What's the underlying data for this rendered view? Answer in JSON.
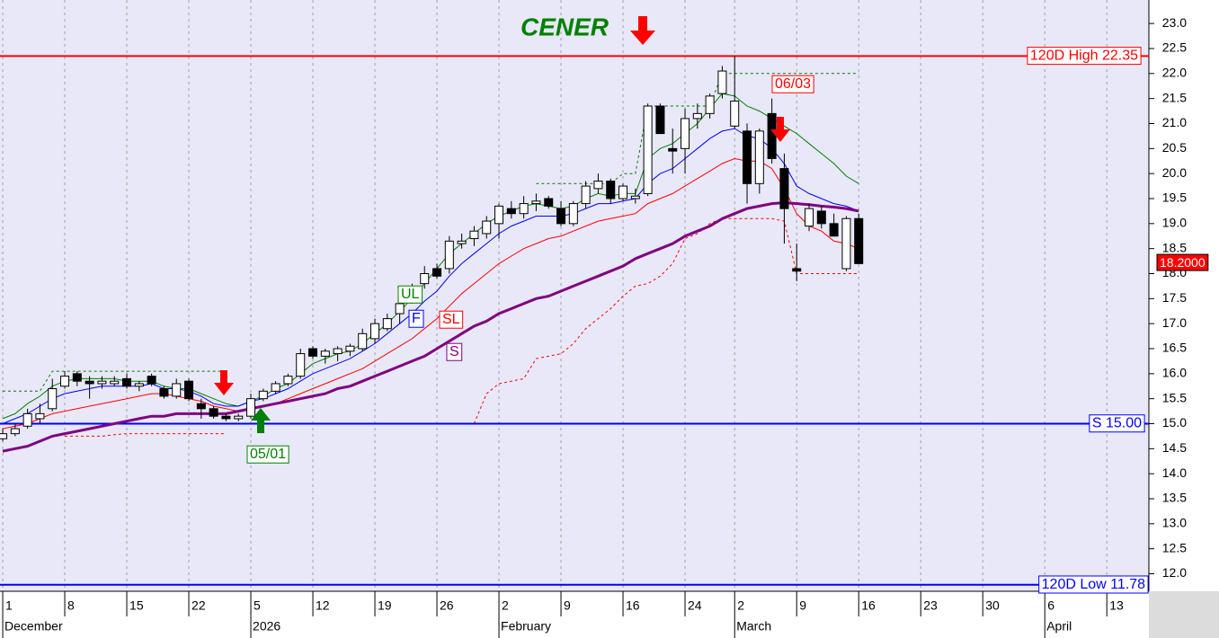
{
  "chart_data": {
    "type": "candlestick",
    "title": "CENER",
    "xlim": [
      -0.22,
      92.39
    ],
    "ylim": [
      11.65,
      23.47
    ],
    "yticks": [
      {
        "value": 12,
        "label": "12.0"
      },
      {
        "value": 12.5,
        "label": "12.5"
      },
      {
        "value": 13,
        "label": "13.0"
      },
      {
        "value": 13.5,
        "label": "13.5"
      },
      {
        "value": 14,
        "label": "14.0"
      },
      {
        "value": 14.5,
        "label": "14.5"
      },
      {
        "value": 15,
        "label": "15.0"
      },
      {
        "value": 15.5,
        "label": "15.5"
      },
      {
        "value": 16,
        "label": "16.0"
      },
      {
        "value": 16.5,
        "label": "16.5"
      },
      {
        "value": 17,
        "label": "17.0"
      },
      {
        "value": 17.5,
        "label": "17.5"
      },
      {
        "value": 18,
        "label": "18.0"
      },
      {
        "value": 18.5,
        "label": "18.5"
      },
      {
        "value": 19,
        "label": "19.0"
      },
      {
        "value": 19.5,
        "label": "19.5"
      },
      {
        "value": 20,
        "label": "20.0"
      },
      {
        "value": 20.5,
        "label": "20.5"
      },
      {
        "value": 21,
        "label": "21.0"
      },
      {
        "value": 21.5,
        "label": "21.5"
      },
      {
        "value": 22,
        "label": "22.0"
      },
      {
        "value": 22.5,
        "label": "22.5"
      },
      {
        "value": 23,
        "label": "23.0"
      }
    ],
    "xticks": [
      {
        "value": 0,
        "label": "1"
      },
      {
        "value": 5,
        "label": "8"
      },
      {
        "value": 10,
        "label": "15"
      },
      {
        "value": 15,
        "label": "22"
      },
      {
        "value": 20,
        "label": "5"
      },
      {
        "value": 25,
        "label": "12"
      },
      {
        "value": 30,
        "label": "19"
      },
      {
        "value": 35,
        "label": "26"
      },
      {
        "value": 40,
        "label": "2"
      },
      {
        "value": 45,
        "label": "9"
      },
      {
        "value": 50,
        "label": "16"
      },
      {
        "value": 55,
        "label": "24"
      },
      {
        "value": 59,
        "label": "2"
      },
      {
        "value": 64,
        "label": "9"
      },
      {
        "value": 69,
        "label": "16"
      },
      {
        "value": 74,
        "label": "23"
      },
      {
        "value": 79,
        "label": "30"
      },
      {
        "value": 84,
        "label": "6"
      },
      {
        "value": 89,
        "label": "13"
      }
    ],
    "months": [
      {
        "value": 0,
        "label": "December"
      },
      {
        "value": 20,
        "label": "2026"
      },
      {
        "value": 40,
        "label": "February"
      },
      {
        "value": 59,
        "label": "March"
      },
      {
        "value": 84,
        "label": "April"
      }
    ],
    "candles": {
      "open": [
        14.7,
        14.8,
        14.95,
        15.1,
        15.3,
        15.75,
        16.0,
        15.85,
        15.8,
        15.8,
        15.9,
        15.75,
        15.95,
        15.7,
        15.55,
        15.85,
        15.4,
        15.3,
        15.15,
        15.1,
        15.15,
        15.5,
        15.65,
        15.8,
        15.95,
        16.5,
        16.35,
        16.4,
        16.45,
        16.5,
        16.7,
        16.9,
        17.2,
        17.5,
        17.8,
        18.1,
        18.1,
        18.6,
        18.7,
        18.8,
        19.0,
        19.3,
        19.2,
        19.4,
        19.5,
        19.3,
        19.0,
        19.4,
        19.7,
        19.85,
        19.5,
        19.5,
        19.6,
        21.35,
        20.5,
        20.5,
        21.1,
        21.2,
        21.6,
        20.95,
        20.85,
        19.8,
        21.2,
        20.1,
        18.1,
        18.95,
        19.25,
        19.0,
        18.1,
        19.1
      ],
      "high": [
        14.9,
        15.0,
        15.3,
        15.4,
        15.9,
        16.05,
        16.05,
        15.95,
        15.95,
        15.95,
        16.0,
        15.85,
        16.0,
        15.75,
        15.9,
        15.9,
        15.5,
        15.35,
        15.2,
        15.2,
        15.6,
        15.7,
        15.85,
        16.0,
        16.5,
        16.55,
        16.5,
        16.55,
        16.6,
        16.9,
        17.1,
        17.2,
        17.5,
        17.8,
        18.15,
        18.2,
        18.75,
        18.8,
        18.95,
        19.15,
        19.4,
        19.45,
        19.55,
        19.6,
        19.55,
        19.45,
        19.45,
        19.85,
        20.0,
        19.9,
        19.8,
        19.7,
        21.4,
        21.4,
        20.9,
        21.3,
        21.4,
        21.6,
        22.15,
        22.35,
        21.0,
        20.9,
        21.5,
        20.4,
        18.6,
        19.4,
        19.35,
        19.2,
        19.15,
        19.2
      ],
      "low": [
        14.65,
        14.75,
        14.9,
        15.0,
        15.25,
        15.7,
        15.75,
        15.5,
        15.7,
        15.75,
        15.7,
        15.65,
        15.75,
        15.5,
        15.5,
        15.45,
        15.1,
        15.1,
        15.05,
        15.05,
        15.1,
        15.45,
        15.6,
        15.75,
        15.9,
        16.3,
        16.2,
        16.25,
        16.35,
        16.45,
        16.6,
        16.85,
        17.0,
        17.4,
        17.7,
        17.9,
        18.0,
        18.5,
        18.55,
        18.7,
        18.7,
        19.1,
        19.1,
        19.25,
        19.3,
        18.95,
        18.95,
        19.3,
        19.6,
        19.4,
        19.45,
        19.4,
        19.55,
        20.8,
        20.0,
        20.0,
        20.9,
        21.1,
        21.5,
        20.9,
        19.4,
        19.6,
        20.2,
        18.6,
        17.85,
        18.85,
        18.9,
        18.75,
        18.05,
        18.2
      ],
      "close": [
        14.8,
        14.9,
        15.2,
        15.2,
        15.7,
        15.95,
        15.85,
        15.8,
        15.85,
        15.85,
        15.75,
        15.8,
        15.8,
        15.55,
        15.8,
        15.5,
        15.3,
        15.15,
        15.1,
        15.15,
        15.5,
        15.65,
        15.8,
        15.95,
        16.4,
        16.35,
        16.45,
        16.5,
        16.55,
        16.8,
        17.0,
        17.1,
        17.4,
        17.7,
        18.0,
        17.95,
        18.65,
        18.65,
        18.85,
        19.05,
        19.35,
        19.2,
        19.4,
        19.45,
        19.35,
        19.0,
        19.4,
        19.75,
        19.85,
        19.5,
        19.75,
        19.55,
        21.35,
        20.8,
        20.45,
        21.1,
        21.2,
        21.55,
        22.05,
        21.45,
        19.8,
        20.85,
        20.3,
        19.3,
        18.05,
        19.3,
        19.0,
        18.75,
        19.1,
        18.2
      ]
    },
    "series": [
      {
        "name": "UL",
        "color": "#008000",
        "values": [
          15.1,
          15.2,
          15.4,
          15.55,
          15.75,
          15.85,
          15.9,
          15.9,
          15.9,
          15.9,
          15.85,
          15.85,
          15.85,
          15.75,
          15.7,
          15.7,
          15.6,
          15.5,
          15.4,
          15.35,
          15.45,
          15.55,
          15.7,
          15.8,
          16.0,
          16.2,
          16.3,
          16.4,
          16.45,
          16.6,
          16.8,
          17.0,
          17.25,
          17.5,
          17.8,
          18.1,
          18.4,
          18.6,
          18.8,
          19.0,
          19.15,
          19.25,
          19.35,
          19.4,
          19.35,
          19.3,
          19.35,
          19.5,
          19.6,
          19.55,
          19.6,
          19.6,
          20.3,
          20.5,
          20.6,
          20.8,
          21.0,
          21.3,
          21.6,
          21.55,
          21.35,
          21.25,
          21.1,
          20.95,
          20.8,
          20.6,
          20.4,
          20.2,
          19.95,
          19.8
        ]
      },
      {
        "name": "F",
        "color": "#0000ff",
        "values": [
          15.0,
          15.1,
          15.2,
          15.35,
          15.5,
          15.6,
          15.65,
          15.7,
          15.75,
          15.75,
          15.75,
          15.75,
          15.8,
          15.7,
          15.7,
          15.65,
          15.55,
          15.4,
          15.35,
          15.35,
          15.45,
          15.5,
          15.6,
          15.7,
          15.85,
          16.0,
          16.1,
          16.2,
          16.3,
          16.45,
          16.6,
          16.8,
          17.0,
          17.2,
          17.45,
          17.65,
          17.95,
          18.2,
          18.4,
          18.6,
          18.8,
          18.95,
          19.05,
          19.15,
          19.15,
          19.15,
          19.2,
          19.3,
          19.4,
          19.4,
          19.45,
          19.5,
          19.8,
          20.0,
          20.1,
          20.3,
          20.5,
          20.7,
          20.85,
          20.9,
          20.75,
          20.7,
          20.5,
          20.2,
          19.75,
          19.6,
          19.5,
          19.4,
          19.35,
          19.25
        ]
      },
      {
        "name": "SL",
        "color": "#ff0000",
        "values": [
          14.9,
          14.95,
          15.0,
          15.1,
          15.2,
          15.25,
          15.3,
          15.35,
          15.4,
          15.45,
          15.5,
          15.55,
          15.6,
          15.6,
          15.55,
          15.5,
          15.45,
          15.35,
          15.3,
          15.25,
          15.3,
          15.35,
          15.4,
          15.5,
          15.6,
          15.7,
          15.8,
          15.9,
          16.0,
          16.1,
          16.25,
          16.4,
          16.55,
          16.7,
          16.9,
          17.1,
          17.35,
          17.6,
          17.8,
          18.0,
          18.2,
          18.35,
          18.5,
          18.6,
          18.7,
          18.75,
          18.85,
          18.95,
          19.05,
          19.1,
          19.15,
          19.2,
          19.4,
          19.5,
          19.6,
          19.75,
          19.9,
          20.05,
          20.2,
          20.3,
          20.25,
          20.25,
          20.1,
          19.7,
          19.2,
          18.95,
          18.85,
          18.65,
          18.6,
          18.5
        ]
      },
      {
        "name": "S",
        "color": "#800080",
        "width": 3,
        "values": [
          14.45,
          14.5,
          14.55,
          14.65,
          14.75,
          14.8,
          14.85,
          14.9,
          14.95,
          15.0,
          15.05,
          15.1,
          15.15,
          15.15,
          15.2,
          15.2,
          15.2,
          15.2,
          15.2,
          15.25,
          15.3,
          15.35,
          15.4,
          15.45,
          15.5,
          15.55,
          15.6,
          15.7,
          15.75,
          15.85,
          15.95,
          16.05,
          16.15,
          16.25,
          16.35,
          16.5,
          16.65,
          16.8,
          16.95,
          17.05,
          17.2,
          17.3,
          17.4,
          17.5,
          17.55,
          17.65,
          17.75,
          17.85,
          17.95,
          18.05,
          18.15,
          18.3,
          18.4,
          18.5,
          18.6,
          18.75,
          18.85,
          18.95,
          19.1,
          19.2,
          19.3,
          19.35,
          19.4,
          19.42,
          19.4,
          19.38,
          19.35,
          19.33,
          19.3,
          19.25
        ]
      }
    ],
    "stops": [
      {
        "color": "#ff0000",
        "values": [
          null,
          null,
          null,
          null,
          null,
          14.75,
          14.75,
          14.75,
          14.75,
          14.78,
          14.8,
          14.8,
          14.8,
          14.8,
          14.8,
          14.8,
          14.8,
          14.8,
          14.8,
          null,
          null,
          null,
          null,
          null,
          null,
          null,
          null,
          null,
          null,
          null,
          null,
          null,
          null,
          null,
          null,
          null,
          null,
          null,
          15.0,
          15.6,
          15.8,
          15.85,
          15.9,
          16.3,
          16.35,
          16.4,
          16.6,
          16.9,
          17.1,
          17.3,
          17.55,
          17.75,
          17.8,
          17.95,
          18.2,
          18.7,
          18.8,
          19.0,
          19.1,
          19.1,
          19.1,
          19.1,
          19.1,
          19.05,
          18.0,
          18.0,
          18.0,
          18.0,
          18.0,
          18.0
        ]
      },
      {
        "color": "#008000",
        "values": [
          15.65,
          15.65,
          15.65,
          15.65,
          16.05,
          16.05,
          16.05,
          16.05,
          16.05,
          16.05,
          16.05,
          16.05,
          16.05,
          16.05,
          16.05,
          16.05,
          16.05,
          16.05,
          16.05,
          null,
          null,
          null,
          null,
          null,
          null,
          null,
          null,
          null,
          null,
          null,
          null,
          null,
          null,
          null,
          null,
          null,
          null,
          null,
          null,
          null,
          null,
          null,
          null,
          19.8,
          19.8,
          19.8,
          19.8,
          19.8,
          19.8,
          19.8,
          20.0,
          20.0,
          21.35,
          21.35,
          21.35,
          21.35,
          21.35,
          21.35,
          22.0,
          22.0,
          22.0,
          22.0,
          22.0,
          22.0,
          22.0,
          22.0,
          22.0,
          22.0,
          22.0,
          22.0
        ]
      }
    ],
    "hlines": [
      {
        "label": "120D High 22.35",
        "value": 22.35,
        "color": "#ff0000"
      },
      {
        "label": "S 15.00",
        "value": 15.0,
        "color": "#0000ff"
      },
      {
        "label": "120D Low 11.78",
        "value": 11.78,
        "color": "#0000ff"
      }
    ],
    "last": {
      "label": "18.2000",
      "value": 18.2,
      "color": "#ff0000"
    },
    "annotations": [
      {
        "text": "06/03",
        "color": "#ff0000"
      },
      {
        "text": "05/01",
        "color": "#008000"
      }
    ]
  }
}
